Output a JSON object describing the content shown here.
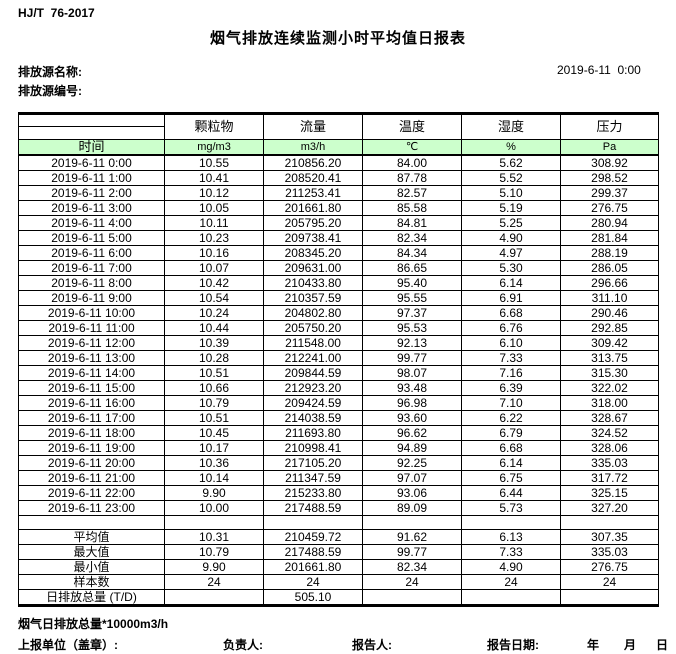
{
  "page": {
    "standard_code": "HJ/T  76-2017",
    "title": "烟气排放连续监测小时平均值日报表",
    "source_name_label": "排放源名称:",
    "source_code_label": "排放源编号:",
    "report_datetime": "2019-6-11  0:00"
  },
  "colors": {
    "header_row_green": "#ccffcc",
    "border": "#000000"
  },
  "table": {
    "time_header": "时间",
    "columns": [
      {
        "name": "颗粒物",
        "unit": "mg/m3"
      },
      {
        "name": "流量",
        "unit": "m3/h"
      },
      {
        "name": "温度",
        "unit": "℃"
      },
      {
        "name": "湿度",
        "unit": "%"
      },
      {
        "name": "压力",
        "unit": "Pa"
      }
    ],
    "rows": [
      {
        "time": "2019-6-11  0:00",
        "values": [
          "10.55",
          "210856.20",
          "84.00",
          "5.62",
          "308.92"
        ]
      },
      {
        "time": "2019-6-11  1:00",
        "values": [
          "10.41",
          "208520.41",
          "87.78",
          "5.52",
          "298.52"
        ]
      },
      {
        "time": "2019-6-11  2:00",
        "values": [
          "10.12",
          "211253.41",
          "82.57",
          "5.10",
          "299.37"
        ]
      },
      {
        "time": "2019-6-11  3:00",
        "values": [
          "10.05",
          "201661.80",
          "85.58",
          "5.19",
          "276.75"
        ]
      },
      {
        "time": "2019-6-11  4:00",
        "values": [
          "10.11",
          "205795.20",
          "84.81",
          "5.25",
          "280.94"
        ]
      },
      {
        "time": "2019-6-11  5:00",
        "values": [
          "10.23",
          "209738.41",
          "82.34",
          "4.90",
          "281.84"
        ]
      },
      {
        "time": "2019-6-11  6:00",
        "values": [
          "10.16",
          "208345.20",
          "84.34",
          "4.97",
          "288.19"
        ]
      },
      {
        "time": "2019-6-11  7:00",
        "values": [
          "10.07",
          "209631.00",
          "86.65",
          "5.30",
          "286.05"
        ]
      },
      {
        "time": "2019-6-11  8:00",
        "values": [
          "10.42",
          "210433.80",
          "95.40",
          "6.14",
          "296.66"
        ]
      },
      {
        "time": "2019-6-11  9:00",
        "values": [
          "10.54",
          "210357.59",
          "95.55",
          "6.91",
          "311.10"
        ]
      },
      {
        "time": "2019-6-11 10:00",
        "values": [
          "10.24",
          "204802.80",
          "97.37",
          "6.68",
          "290.46"
        ]
      },
      {
        "time": "2019-6-11 11:00",
        "values": [
          "10.44",
          "205750.20",
          "95.53",
          "6.76",
          "292.85"
        ]
      },
      {
        "time": "2019-6-11 12:00",
        "values": [
          "10.39",
          "211548.00",
          "92.13",
          "6.10",
          "309.42"
        ]
      },
      {
        "time": "2019-6-11 13:00",
        "values": [
          "10.28",
          "212241.00",
          "99.77",
          "7.33",
          "313.75"
        ]
      },
      {
        "time": "2019-6-11 14:00",
        "values": [
          "10.51",
          "209844.59",
          "98.07",
          "7.16",
          "315.30"
        ]
      },
      {
        "time": "2019-6-11 15:00",
        "values": [
          "10.66",
          "212923.20",
          "93.48",
          "6.39",
          "322.02"
        ]
      },
      {
        "time": "2019-6-11 16:00",
        "values": [
          "10.79",
          "209424.59",
          "96.98",
          "7.10",
          "318.00"
        ]
      },
      {
        "time": "2019-6-11 17:00",
        "values": [
          "10.51",
          "214038.59",
          "93.60",
          "6.22",
          "328.67"
        ]
      },
      {
        "time": "2019-6-11 18:00",
        "values": [
          "10.45",
          "211693.80",
          "96.62",
          "6.79",
          "324.52"
        ]
      },
      {
        "time": "2019-6-11 19:00",
        "values": [
          "10.17",
          "210998.41",
          "94.89",
          "6.68",
          "328.06"
        ]
      },
      {
        "time": "2019-6-11 20:00",
        "values": [
          "10.36",
          "217105.20",
          "92.25",
          "6.14",
          "335.03"
        ]
      },
      {
        "time": "2019-6-11 21:00",
        "values": [
          "10.14",
          "211347.59",
          "97.07",
          "6.75",
          "317.72"
        ]
      },
      {
        "time": "2019-6-11 22:00",
        "values": [
          "9.90",
          "215233.80",
          "93.06",
          "6.44",
          "325.15"
        ]
      },
      {
        "time": "2019-6-11 23:00",
        "values": [
          "10.00",
          "217488.59",
          "89.09",
          "5.73",
          "327.20"
        ]
      }
    ],
    "summary": [
      {
        "label": "平均值",
        "values": [
          "10.31",
          "210459.72",
          "91.62",
          "6.13",
          "307.35"
        ]
      },
      {
        "label": "最大值",
        "values": [
          "10.79",
          "217488.59",
          "99.77",
          "7.33",
          "335.03"
        ]
      },
      {
        "label": "最小值",
        "values": [
          "9.90",
          "201661.80",
          "82.34",
          "4.90",
          "276.75"
        ]
      },
      {
        "label": "样本数",
        "values": [
          "24",
          "24",
          "24",
          "24",
          "24"
        ]
      },
      {
        "label": "日排放总量 (T/D)",
        "values": [
          "",
          "505.10",
          "",
          "",
          ""
        ]
      }
    ]
  },
  "footer": {
    "note": "烟气日排放总量*10000m3/h",
    "report_unit_label": "上报单位（盖章）:",
    "responsible_label": "负责人:",
    "reporter_label": "报告人:",
    "report_date_label": "报告日期:",
    "year_label": "年",
    "month_label": "月",
    "day_label": "日"
  }
}
